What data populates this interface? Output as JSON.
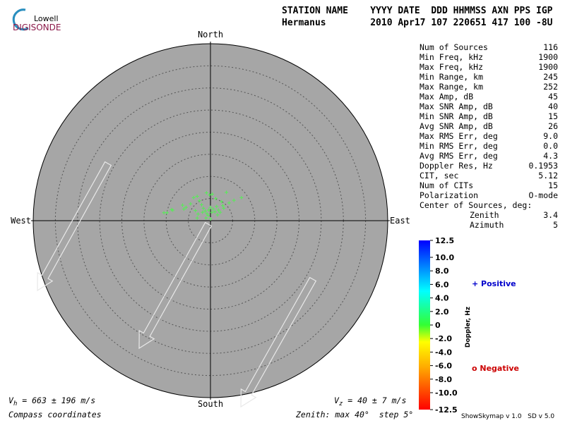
{
  "logo": {
    "top": "Lowell",
    "bottom": "DIGISONDE"
  },
  "header": {
    "columns": "STATION NAME    YYYY DATE  DDD HHMMSS AXN PPS IGP",
    "values": "Hermanus        2010 Apr17 107 220651 417 100 -8U"
  },
  "stats": [
    [
      "Num of Sources",
      "116"
    ],
    [
      "Min Freq, kHz",
      "1900"
    ],
    [
      "Max Freq, kHz",
      "1900"
    ],
    [
      "Min Range, km",
      "245"
    ],
    [
      "Max Range, km",
      "252"
    ],
    [
      "Max Amp, dB",
      "45"
    ],
    [
      "Max SNR Amp, dB",
      "40"
    ],
    [
      "Min SNR Amp, dB",
      "15"
    ],
    [
      "Avg SNR Amp, dB",
      "26"
    ],
    [
      "Max RMS Err, deg",
      "9.0"
    ],
    [
      "Min RMS Err, deg",
      "0.0"
    ],
    [
      "Avg RMS Err, deg",
      "4.3"
    ],
    [
      "Doppler Res, Hz",
      "0.1953"
    ],
    [
      "CIT, sec",
      "5.12"
    ],
    [
      "Num of CITs",
      "15"
    ],
    [
      "Polarization",
      "O-mode"
    ]
  ],
  "center": {
    "title": "Center of Sources, deg:",
    "rows": [
      [
        "Zenith",
        "3.4"
      ],
      [
        "Azimuth",
        "5"
      ]
    ]
  },
  "legend": {
    "positive": "+ Positive",
    "negative": "o Negative",
    "colorbar_title": "Doppler, Hz"
  },
  "footer": {
    "vh_symbol": "V",
    "vh_sub": "h",
    "vh_text": " = 663 ± 196 m/s",
    "vz_symbol": "V",
    "vz_sub": "z",
    "vz_text": " = 40 ± 7 m/s",
    "coords": "Compass coordinates",
    "zenith": "Zenith: max 40°  step 5°",
    "version": "ShowSkymap v 1.0   SD v 5.0"
  },
  "chart_data": {
    "type": "skymap",
    "directions": {
      "north": "North",
      "south": "South",
      "east": "East",
      "west": "West"
    },
    "rlim": [
      0,
      40
    ],
    "rticks": [
      5,
      10,
      15,
      20,
      25,
      30,
      35
    ],
    "point_color": "#55ee55",
    "x": [
      -10.5,
      -9.8,
      -8.5,
      -8.8,
      -6.0,
      -5.5,
      -6.3,
      -4.5,
      -3.8,
      -3.0,
      -2.5,
      -2.0,
      -1.6,
      -1.2,
      -0.8,
      -0.4,
      0,
      0.3,
      0.6,
      1.0,
      1.4,
      1.8,
      2.2,
      -0.2,
      -0.9,
      0.4,
      1.2,
      2.5,
      3.6,
      4.2,
      5.3,
      7.0,
      3.0,
      -2.8,
      -3.4,
      -1.0,
      -3.0,
      0.0,
      -0.5,
      1.6,
      -1.8,
      2.8
    ],
    "y": [
      1.8,
      1.8,
      2.4,
      2.5,
      2.6,
      3.0,
      3.5,
      3.8,
      5.2,
      5.5,
      4.5,
      3.6,
      2.8,
      2.2,
      1.6,
      2.4,
      3.0,
      1.9,
      2.6,
      2.0,
      3.2,
      2.4,
      1.9,
      5.8,
      6.3,
      6.0,
      5.0,
      4.3,
      6.4,
      4.0,
      4.6,
      5.2,
      2.8,
      1.5,
      2.3,
      0.6,
      0.6,
      0.4,
      1.2,
      1.3,
      1.9,
      3.4
    ],
    "colorbar_lim": [
      -12.5,
      12.5
    ],
    "colorbar_ticks": [
      12.5,
      {
        "value": 10,
        "label": "10.0"
      },
      {
        "value": 8,
        "label": "8.0"
      },
      {
        "value": 6,
        "label": "6.0"
      },
      {
        "value": 4,
        "label": "4.0"
      },
      {
        "value": 2,
        "label": "2.0"
      },
      0,
      {
        "value": -2,
        "label": "-2.0"
      },
      {
        "value": -4,
        "label": "-4.0"
      },
      {
        "value": -6,
        "label": "-6.0"
      },
      {
        "value": -8,
        "label": "-8.0"
      },
      {
        "value": -10,
        "label": "-10.0"
      },
      -12.5
    ]
  }
}
